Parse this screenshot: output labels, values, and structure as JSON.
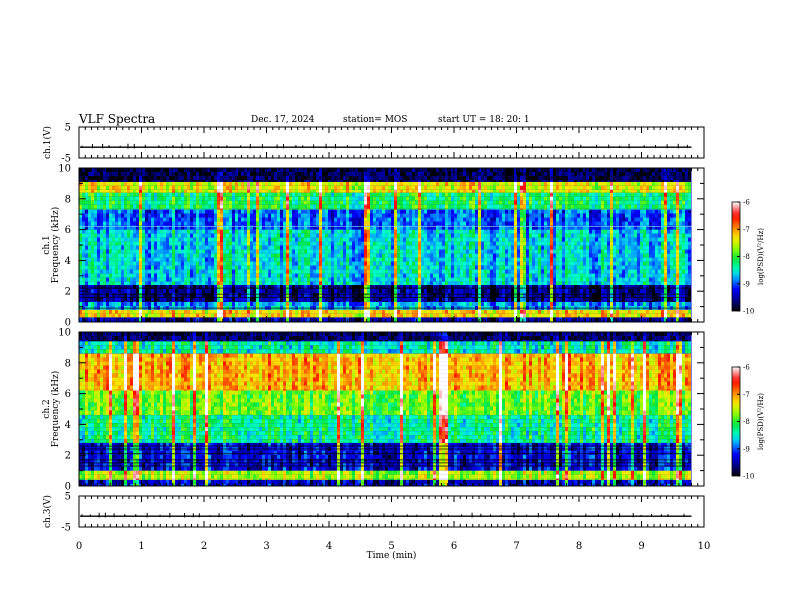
{
  "header": {
    "title": "VLF Spectra",
    "date": "Dec. 17, 2024",
    "station": "station= MOS",
    "start": "start  UT  =   18: 20: 1"
  },
  "colorbar": {
    "ticks": [
      "-6",
      "-7",
      "-8",
      "-9",
      "-10"
    ],
    "label": "log(PSD)(V²/Hz)",
    "stops": [
      "#ffffff",
      "#ff0000",
      "#ffff00",
      "#00ff00",
      "#00ffff",
      "#0000ff",
      "#000000"
    ]
  },
  "chart_data": [
    {
      "type": "line",
      "name": "ch.1 waveform",
      "ylabel": "ch.1(V)",
      "ylim": [
        -5,
        5
      ],
      "yticks": [
        "5",
        "-5"
      ],
      "baseline_level": -1.5,
      "xlim": [
        0,
        10
      ]
    },
    {
      "type": "heatmap",
      "name": "ch.1 spectrogram",
      "ylabel_channel": "ch.1",
      "ylabel": "Frequency (kHz)",
      "ylim": [
        0,
        10
      ],
      "yticks": [
        "0",
        "2",
        "4",
        "6",
        "8",
        "10"
      ],
      "xlim": [
        0,
        9.8
      ],
      "bands_khz": [
        {
          "from": 0.0,
          "to": 0.3,
          "level": -9.5
        },
        {
          "from": 0.3,
          "to": 0.8,
          "level": -7.3
        },
        {
          "from": 0.8,
          "to": 1.3,
          "level": -8.8
        },
        {
          "from": 1.3,
          "to": 2.4,
          "level": -9.6
        },
        {
          "from": 2.4,
          "to": 6.0,
          "level": -8.6
        },
        {
          "from": 6.0,
          "to": 7.3,
          "level": -9.0
        },
        {
          "from": 7.3,
          "to": 8.4,
          "level": -8.2
        },
        {
          "from": 8.4,
          "to": 9.1,
          "level": -7.4
        },
        {
          "from": 9.1,
          "to": 10.0,
          "level": -9.8
        }
      ],
      "colorbar_range": [
        -10,
        -6
      ],
      "colorbar_label": "log(PSD)(V²/Hz)"
    },
    {
      "type": "heatmap",
      "name": "ch.2 spectrogram",
      "ylabel_channel": "ch.2",
      "ylabel": "Frequency (kHz)",
      "ylim": [
        0,
        10
      ],
      "yticks": [
        "0",
        "2",
        "4",
        "6",
        "8",
        "10"
      ],
      "xlim": [
        0,
        9.8
      ],
      "bands_khz": [
        {
          "from": 0.0,
          "to": 0.4,
          "level": -9.4
        },
        {
          "from": 0.4,
          "to": 1.0,
          "level": -7.6
        },
        {
          "from": 1.0,
          "to": 2.8,
          "level": -9.3
        },
        {
          "from": 2.8,
          "to": 4.6,
          "level": -8.3
        },
        {
          "from": 4.6,
          "to": 6.2,
          "level": -7.8
        },
        {
          "from": 6.2,
          "to": 8.6,
          "level": -7.1
        },
        {
          "from": 8.6,
          "to": 9.4,
          "level": -8.4
        },
        {
          "from": 9.4,
          "to": 10.0,
          "level": -9.7
        }
      ],
      "colorbar_range": [
        -10,
        -6
      ],
      "colorbar_label": "log(PSD)(V²/Hz)"
    },
    {
      "type": "line",
      "name": "ch.3 waveform",
      "ylabel": "ch.3(V)",
      "ylim": [
        -5,
        5
      ],
      "yticks": [
        "5",
        "-5"
      ],
      "baseline_level": -1.5,
      "xlim": [
        0,
        10
      ]
    }
  ],
  "xaxis": {
    "label": "Time  (min)",
    "ticks": [
      "0",
      "1",
      "2",
      "3",
      "4",
      "5",
      "6",
      "7",
      "8",
      "9",
      "10"
    ],
    "xlim": [
      0,
      10
    ]
  }
}
